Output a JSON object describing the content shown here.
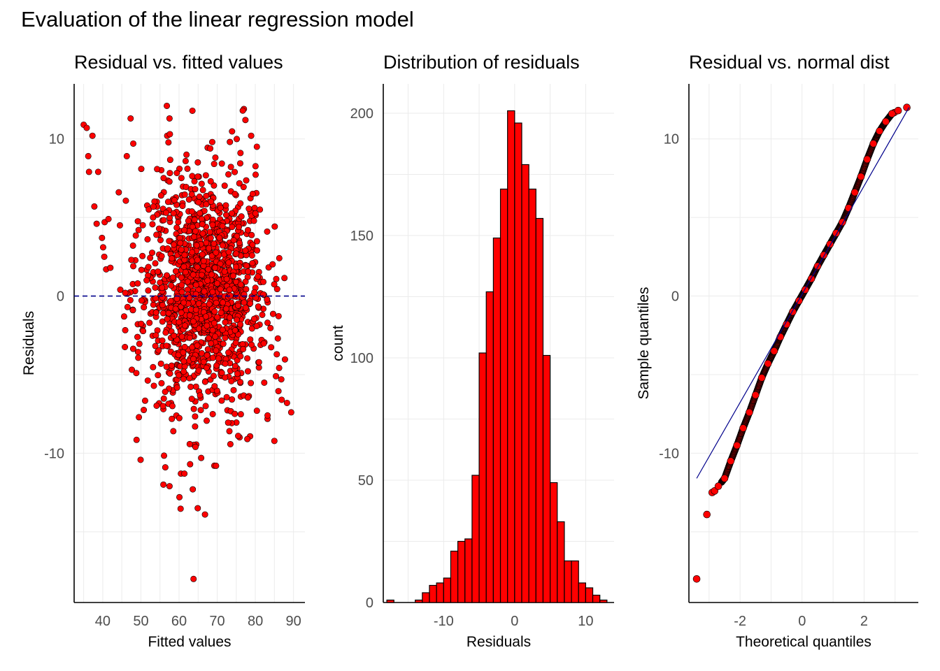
{
  "title": "Evaluation of the linear regression model",
  "colors": {
    "point_fill": "#ff0000",
    "point_stroke": "#000000",
    "reference_line": "#00008b",
    "bar_fill": "#ff0000",
    "grid": "#ebebeb"
  },
  "chart_data": [
    {
      "type": "scatter",
      "title": "Residual vs. fitted values",
      "xlabel": "Fitted values",
      "ylabel": "Residuals",
      "xlim": [
        32.5,
        93
      ],
      "ylim": [
        -19.5,
        13.5
      ],
      "xticks": [
        40,
        50,
        60,
        70,
        80,
        90
      ],
      "yticks": [
        -10,
        0,
        10
      ],
      "grid": true,
      "reference_line": {
        "type": "hline",
        "y": 0,
        "style": "dashed"
      },
      "points": [
        {
          "x": 35,
          "y": 10.9
        },
        {
          "x": 35.8,
          "y": 10.7
        },
        {
          "x": 37.3,
          "y": 10.2
        },
        {
          "x": 36.2,
          "y": 8.9
        },
        {
          "x": 36.4,
          "y": 7.9
        },
        {
          "x": 38.8,
          "y": 7.9
        },
        {
          "x": 37.8,
          "y": 5.7
        },
        {
          "x": 38.4,
          "y": 4.6
        },
        {
          "x": 40.5,
          "y": 4.7
        },
        {
          "x": 41.5,
          "y": 4.9
        },
        {
          "x": 39.8,
          "y": 3.7
        },
        {
          "x": 40.1,
          "y": 3.1
        },
        {
          "x": 40.4,
          "y": 2.5
        },
        {
          "x": 40.9,
          "y": 1.7
        },
        {
          "x": 42,
          "y": 1.8
        },
        {
          "x": 44.2,
          "y": 6.6
        },
        {
          "x": 44.5,
          "y": 4.5
        },
        {
          "x": 46.3,
          "y": 8.9
        },
        {
          "x": 47.3,
          "y": 11.3
        },
        {
          "x": 48,
          "y": 9.7
        },
        {
          "x": 44.6,
          "y": 0.4
        },
        {
          "x": 45.9,
          "y": 0.2
        },
        {
          "x": 46.5,
          "y": -0.7
        },
        {
          "x": 45.6,
          "y": -1.3
        },
        {
          "x": 47.9,
          "y": -0.9
        },
        {
          "x": 47.5,
          "y": 2.3
        },
        {
          "x": 48,
          "y": 1.9
        },
        {
          "x": 49.4,
          "y": 4.2
        },
        {
          "x": 48.8,
          "y": -4.9
        },
        {
          "x": 51.5,
          "y": 1
        },
        {
          "x": 53.2,
          "y": 5
        },
        {
          "x": 55.3,
          "y": 6.4
        },
        {
          "x": 56.6,
          "y": 5.3
        },
        {
          "x": 57.4,
          "y": 3.5
        },
        {
          "x": 56.9,
          "y": 10.2
        },
        {
          "x": 57.6,
          "y": 10.3
        },
        {
          "x": 56.8,
          "y": 12.1
        },
        {
          "x": 57.5,
          "y": 11.3
        },
        {
          "x": 56.4,
          "y": -10.9
        },
        {
          "x": 57.5,
          "y": -12.1
        },
        {
          "x": 55.9,
          "y": -12
        },
        {
          "x": 60.5,
          "y": -11.3
        },
        {
          "x": 61.4,
          "y": -11.3
        },
        {
          "x": 63.6,
          "y": -12.3
        },
        {
          "x": 62.9,
          "y": -10.7
        },
        {
          "x": 65.8,
          "y": -10.3
        },
        {
          "x": 69.7,
          "y": -10.8
        },
        {
          "x": 60.1,
          "y": -12.8
        },
        {
          "x": 64.3,
          "y": -9.6
        },
        {
          "x": 55.8,
          "y": -7
        },
        {
          "x": 58.5,
          "y": -8.6
        },
        {
          "x": 64.2,
          "y": -8.3
        },
        {
          "x": 64.9,
          "y": -13.5
        },
        {
          "x": 66.8,
          "y": -13.9
        },
        {
          "x": 63.8,
          "y": -18
        },
        {
          "x": 73.2,
          "y": -8.6
        },
        {
          "x": 75.5,
          "y": -8.9
        },
        {
          "x": 77.9,
          "y": -9.1
        },
        {
          "x": 80.4,
          "y": -7.3
        },
        {
          "x": 83.2,
          "y": -7.6
        },
        {
          "x": 86.9,
          "y": -6.6
        },
        {
          "x": 88.3,
          "y": -6.8
        },
        {
          "x": 89.4,
          "y": -7.4
        },
        {
          "x": 85.4,
          "y": -5.1
        },
        {
          "x": 86.8,
          "y": -5.3
        },
        {
          "x": 85.9,
          "y": -2.7
        },
        {
          "x": 83.2,
          "y": -1.7
        },
        {
          "x": 82.1,
          "y": 0.1
        },
        {
          "x": 83.1,
          "y": 4.1
        },
        {
          "x": 81.2,
          "y": 5.5
        },
        {
          "x": 79.3,
          "y": 6.5
        },
        {
          "x": 80.4,
          "y": 9.5
        },
        {
          "x": 78.9,
          "y": 10.2
        },
        {
          "x": 77,
          "y": 11.9
        },
        {
          "x": 76.7,
          "y": 11.8
        },
        {
          "x": 77.4,
          "y": 11.2
        },
        {
          "x": 76.1,
          "y": 9.1
        },
        {
          "x": 68.7,
          "y": 9.8
        },
        {
          "x": 68.3,
          "y": 7.3
        },
        {
          "x": 62.2,
          "y": 8.1
        },
        {
          "x": 64.9,
          "y": 7.6
        },
        {
          "x": 58.8,
          "y": 6.1
        },
        {
          "x": 72.1,
          "y": -4.3
        },
        {
          "x": 79,
          "y": -3.1
        }
      ],
      "cloud_note": "dense cloud of ~1500 points centered around fitted 55-80, residuals mostly between -8 and 8"
    },
    {
      "type": "bar",
      "title": "Distribution of residuals",
      "xlabel": "Residuals",
      "ylabel": "count",
      "xlim": [
        -18.5,
        14
      ],
      "ylim": [
        0,
        212
      ],
      "xticks": [
        -10,
        0,
        10
      ],
      "yticks": [
        0,
        50,
        100,
        150,
        200
      ],
      "grid": true,
      "bin_width": 1,
      "bins": [
        {
          "x": -17.5,
          "count": 1
        },
        {
          "x": -16.5,
          "count": 0
        },
        {
          "x": -15.5,
          "count": 0
        },
        {
          "x": -14.5,
          "count": 0
        },
        {
          "x": -13.5,
          "count": 1
        },
        {
          "x": -12.5,
          "count": 4
        },
        {
          "x": -11.5,
          "count": 7
        },
        {
          "x": -10.5,
          "count": 8
        },
        {
          "x": -9.5,
          "count": 10
        },
        {
          "x": -8.5,
          "count": 21
        },
        {
          "x": -7.5,
          "count": 25
        },
        {
          "x": -6.5,
          "count": 26
        },
        {
          "x": -5.5,
          "count": 52
        },
        {
          "x": -4.5,
          "count": 102
        },
        {
          "x": -3.5,
          "count": 127
        },
        {
          "x": -2.5,
          "count": 149
        },
        {
          "x": -1.5,
          "count": 169
        },
        {
          "x": -0.5,
          "count": 201
        },
        {
          "x": 0.5,
          "count": 196
        },
        {
          "x": 1.5,
          "count": 179
        },
        {
          "x": 2.5,
          "count": 169
        },
        {
          "x": 3.5,
          "count": 157
        },
        {
          "x": 4.5,
          "count": 101
        },
        {
          "x": 5.5,
          "count": 49
        },
        {
          "x": 6.5,
          "count": 33
        },
        {
          "x": 7.5,
          "count": 17
        },
        {
          "x": 8.5,
          "count": 17
        },
        {
          "x": 9.5,
          "count": 8
        },
        {
          "x": 10.5,
          "count": 6
        },
        {
          "x": 11.5,
          "count": 3
        },
        {
          "x": 12.5,
          "count": 1
        }
      ]
    },
    {
      "type": "scatter",
      "title": "Residual vs. normal dist",
      "xlabel": "Theoretical quantiles",
      "ylabel": "Sample quantiles",
      "xlim": [
        -3.65,
        3.75
      ],
      "ylim": [
        -19.5,
        13.5
      ],
      "xticks": [
        -2,
        0,
        2
      ],
      "yticks": [
        -10,
        0,
        10
      ],
      "grid": true,
      "reference_line": {
        "type": "line",
        "from": [
          -3.4,
          -11.6
        ],
        "to": [
          3.45,
          12
        ]
      },
      "qq_points": [
        {
          "x": -3.4,
          "y": -18
        },
        {
          "x": -3.07,
          "y": -13.9
        },
        {
          "x": -2.9,
          "y": -12.5
        },
        {
          "x": -2.82,
          "y": -12.4
        },
        {
          "x": -2.7,
          "y": -12.1
        },
        {
          "x": -2.5,
          "y": -11.6
        },
        {
          "x": -2.3,
          "y": -10.5
        },
        {
          "x": -2.1,
          "y": -9.5
        },
        {
          "x": -1.9,
          "y": -8.4
        },
        {
          "x": -1.7,
          "y": -7.4
        },
        {
          "x": -1.5,
          "y": -6.3
        },
        {
          "x": -1.3,
          "y": -5.2
        },
        {
          "x": -1.1,
          "y": -4.3
        },
        {
          "x": -0.9,
          "y": -3.5
        },
        {
          "x": -0.7,
          "y": -2.6
        },
        {
          "x": -0.5,
          "y": -1.8
        },
        {
          "x": -0.3,
          "y": -1
        },
        {
          "x": -0.1,
          "y": -0.3
        },
        {
          "x": 0.1,
          "y": 0.4
        },
        {
          "x": 0.3,
          "y": 1.1
        },
        {
          "x": 0.5,
          "y": 1.9
        },
        {
          "x": 0.7,
          "y": 2.6
        },
        {
          "x": 0.9,
          "y": 3.3
        },
        {
          "x": 1.1,
          "y": 4
        },
        {
          "x": 1.3,
          "y": 4.7
        },
        {
          "x": 1.5,
          "y": 5.6
        },
        {
          "x": 1.7,
          "y": 6.6
        },
        {
          "x": 1.9,
          "y": 7.6
        },
        {
          "x": 2.1,
          "y": 8.7
        },
        {
          "x": 2.3,
          "y": 9.7
        },
        {
          "x": 2.5,
          "y": 10.5
        },
        {
          "x": 2.7,
          "y": 11.1
        },
        {
          "x": 2.9,
          "y": 11.6
        },
        {
          "x": 3.1,
          "y": 11.8
        },
        {
          "x": 3.38,
          "y": 12
        }
      ]
    }
  ]
}
